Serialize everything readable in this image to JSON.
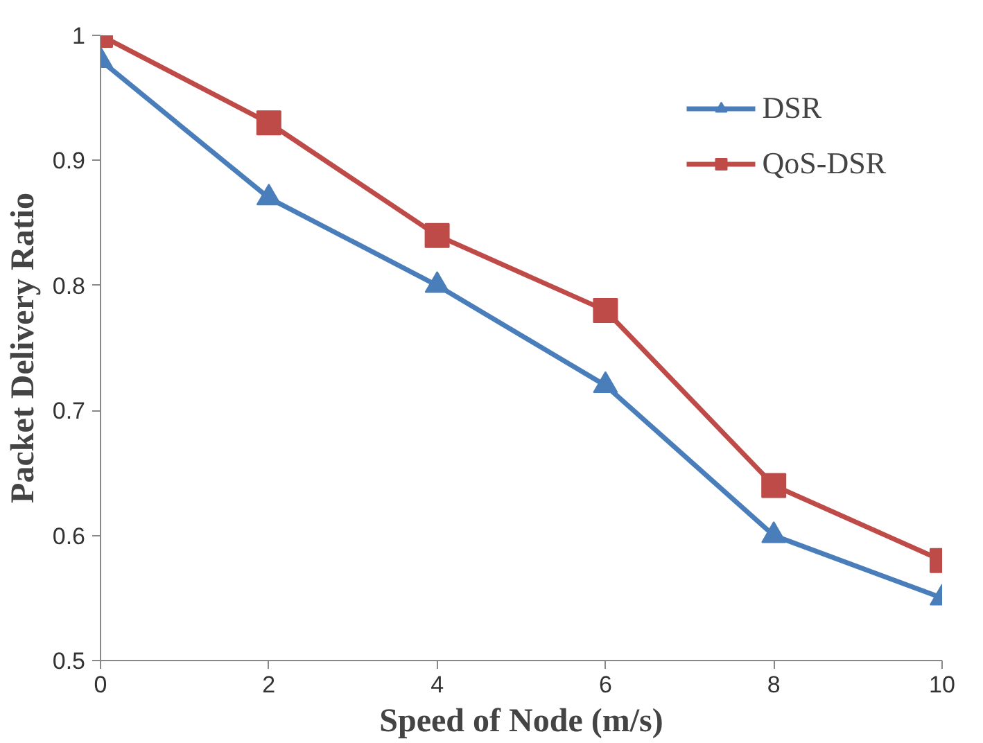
{
  "chart_data": {
    "type": "line",
    "xlabel": "Speed of Node (m/s)",
    "ylabel": "Packet Delivery Ratio",
    "x": [
      0,
      2,
      4,
      6,
      8,
      10
    ],
    "series": [
      {
        "name": "DSR",
        "color": "#4a7ebb",
        "marker": "triangle",
        "values": [
          0.98,
          0.87,
          0.8,
          0.72,
          0.6,
          0.55
        ]
      },
      {
        "name": "QoS-DSR",
        "color": "#be4b48",
        "marker": "square",
        "values": [
          1.0,
          0.93,
          0.84,
          0.78,
          0.64,
          0.58
        ]
      }
    ],
    "xlim": [
      0,
      10
    ],
    "xticks": [
      0,
      2,
      4,
      6,
      8,
      10
    ],
    "ylim": [
      0.5,
      1
    ],
    "yticks": [
      0.5,
      0.6,
      0.7,
      0.8,
      0.9,
      {
        "value": 1,
        "label": "1"
      }
    ],
    "grid": false,
    "legend": "top right",
    "line_style": "solid"
  }
}
